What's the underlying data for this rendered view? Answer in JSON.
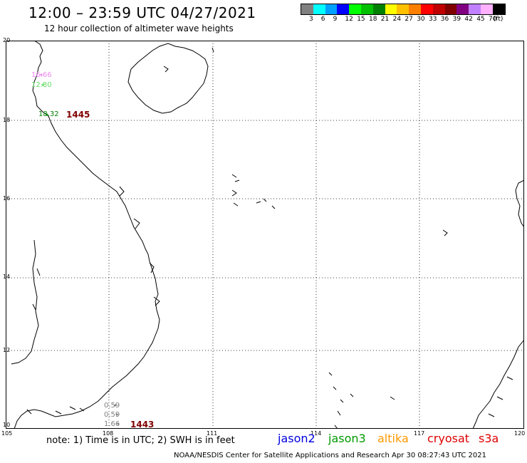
{
  "header": {
    "title": "12:00 – 23:59 UTC 04/27/2021",
    "subtitle": "12 hour collection of altimeter wave heights"
  },
  "legend": {
    "colors": [
      "#808080",
      "#00ffff",
      "#00a0ff",
      "#0000ff",
      "#00ff00",
      "#00c000",
      "#008000",
      "#ffff00",
      "#ffc000",
      "#ff8000",
      "#ff0000",
      "#c00000",
      "#800000",
      "#800080",
      "#c080ff",
      "#ffb0ff",
      "#000000"
    ],
    "labels": [
      "3",
      "6",
      "9",
      "12",
      "15",
      "18",
      "21",
      "24",
      "27",
      "30",
      "33",
      "36",
      "39",
      "42",
      "45",
      "70",
      "(ft)"
    ]
  },
  "axes": {
    "lat_labels": [
      "20",
      "18",
      "16",
      "14",
      "12",
      "10"
    ],
    "lon_labels": [
      "105",
      "108",
      "111",
      "114",
      "117",
      "120"
    ]
  },
  "observations": [
    {
      "value": "16.66",
      "color": "#ee88ee"
    },
    {
      "value": "12.80",
      "color": "#66dd66"
    },
    {
      "value": "18.32",
      "color": "#008000"
    },
    {
      "value": "1445",
      "color": "#800000"
    },
    {
      "value": "0.59",
      "color": "#808080"
    },
    {
      "value": "0.59",
      "color": "#808080"
    },
    {
      "value": "1.66",
      "color": "#808080"
    },
    {
      "value": "1443",
      "color": "#800000"
    }
  ],
  "footer": {
    "note": "note: 1) Time is in UTC; 2) SWH is in feet",
    "credit": "NOAA/NESDIS Center for Satellite Applications and Research    Apr 30 08:27:43 UTC 2021"
  },
  "satellites": [
    {
      "name": "jason2",
      "color": "#0000dd"
    },
    {
      "name": "jason3",
      "color": "#009900"
    },
    {
      "name": "altika",
      "color": "#ff9900"
    },
    {
      "name": "cryosat",
      "color": "#dd0000"
    },
    {
      "name": "s3a",
      "color": "#dd0000"
    }
  ]
}
